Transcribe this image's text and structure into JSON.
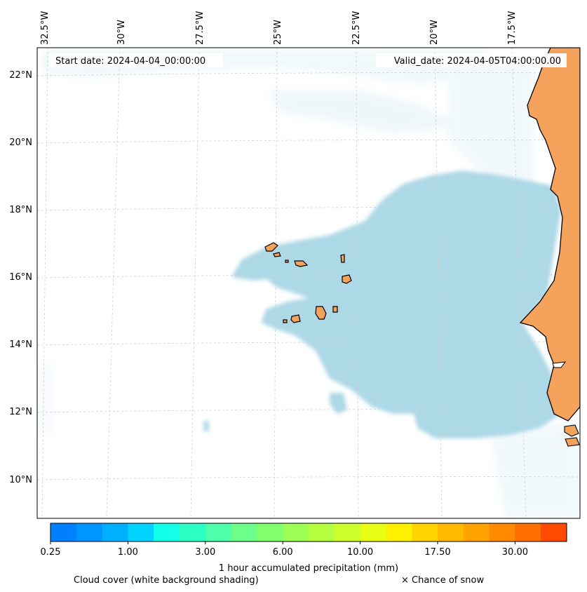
{
  "map": {
    "start_date": "Start date: 2024-04-04_00:00:00",
    "valid_date": "Valid_date: 2024-04-05T04:00:00.00",
    "lon_labels": [
      "32.5°W",
      "30°W",
      "27.5°W",
      "25°W",
      "22.5°W",
      "20°W",
      "17.5°W"
    ],
    "lat_labels": [
      "22°N",
      "20°N",
      "18°N",
      "16°N",
      "14°N",
      "12°N",
      "10°N"
    ],
    "colors": {
      "land": "#f5a25d",
      "cloud": "#add8e6",
      "coast": "#000000",
      "grid": "#cccccc"
    }
  },
  "colorbar": {
    "colors": [
      "#0080ff",
      "#0095ff",
      "#00b0ff",
      "#00d4ff",
      "#12ffe8",
      "#2cffc4",
      "#4dffab",
      "#6cff8a",
      "#82ff6c",
      "#9dff55",
      "#b4ff3f",
      "#cfff2a",
      "#e8ff15",
      "#fff000",
      "#ffd300",
      "#ffba00",
      "#ffa200",
      "#ff8900",
      "#ff6e00",
      "#ff4a00"
    ],
    "tick_labels": [
      "0.25",
      "1.00",
      "3.00",
      "6.00",
      "10.00",
      "17.50",
      "30.00"
    ],
    "title": "1 hour accumulated precipitation (mm)"
  },
  "legend": {
    "cloud_cover": "Cloud cover (white background shading)",
    "snow": "× Chance of snow"
  }
}
